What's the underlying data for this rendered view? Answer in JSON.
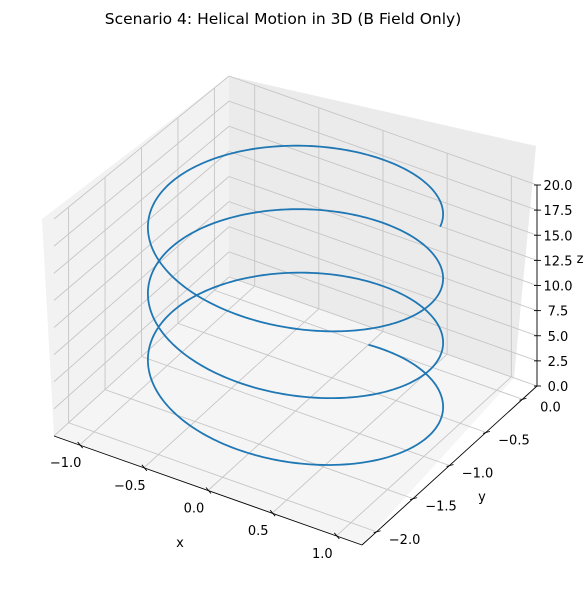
{
  "chart_data": {
    "type": "line",
    "projection": "3d",
    "title": "Scenario 4: Helical Motion in 3D (B Field Only)",
    "xlabel": "x",
    "ylabel": "y",
    "zlabel": "z",
    "xlim": [
      -1.2,
      1.2
    ],
    "ylim": [
      -2.2,
      0.2
    ],
    "zlim": [
      0,
      20
    ],
    "xticks": [
      "−1.0",
      "−0.5",
      "0.0",
      "0.5",
      "1.0"
    ],
    "yticks": [
      "0.0",
      "−0.5",
      "−1.0",
      "−1.5",
      "−2.0"
    ],
    "zticks": [
      "0.0",
      "2.5",
      "5.0",
      "7.5",
      "10.0",
      "12.5",
      "15.0",
      "17.5",
      "20.0"
    ],
    "grid": true,
    "series": [
      {
        "color": "#1f77b4",
        "helix": {
          "center_x": 0.0,
          "center_y": -1.0,
          "radius": 1.0,
          "start_point": [
            0.0,
            0.0,
            0.0
          ],
          "end_point": [
            0.7,
            -0.3,
            20.0
          ],
          "turns": 3.2,
          "z_start": 0.0,
          "z_end": 20.0
        }
      }
    ]
  }
}
